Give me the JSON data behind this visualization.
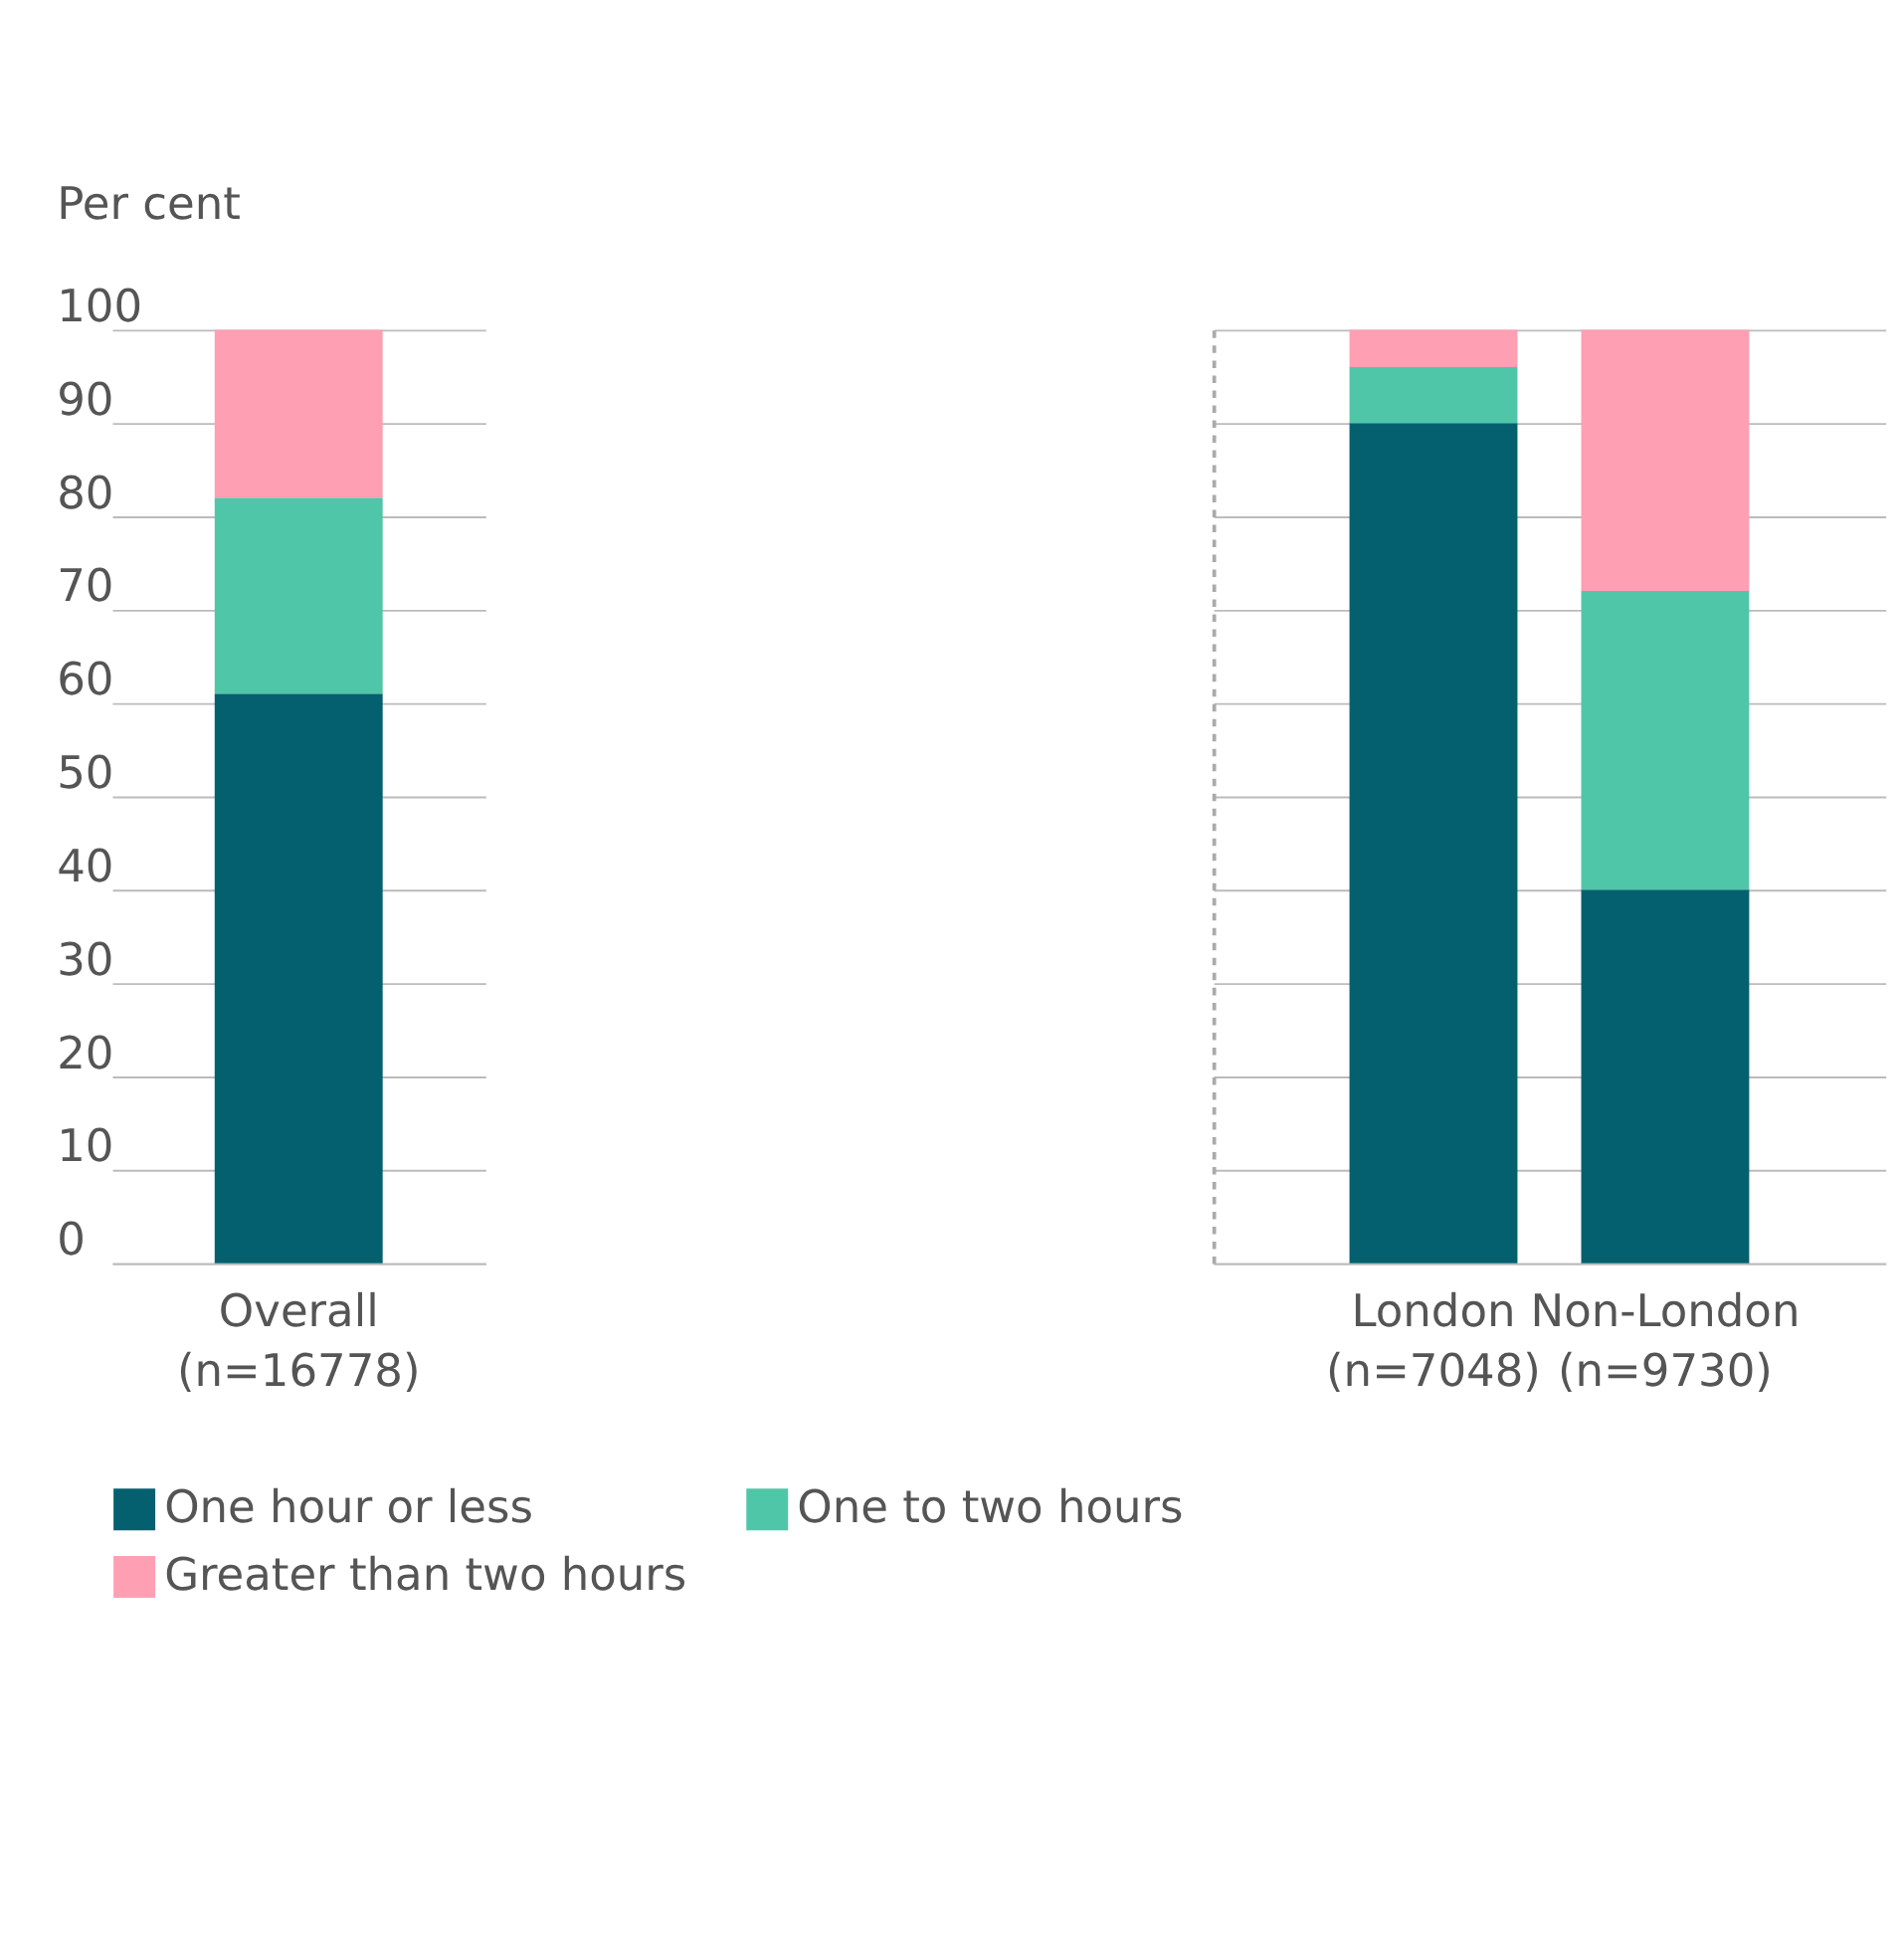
{
  "chart_data": [
    {
      "type": "bar",
      "stacked": true,
      "ylabel": "Per cent",
      "categories": [
        "Overall\n(n=16778)"
      ],
      "ylim": [
        0,
        100
      ],
      "yticks": [
        0,
        10,
        20,
        30,
        40,
        50,
        60,
        70,
        80,
        90,
        100
      ],
      "grid": "y",
      "legend": "bottom",
      "series": [
        {
          "name": "One hour or less",
          "color": "#04606f",
          "values": [
            61
          ]
        },
        {
          "name": "One to two hours",
          "color": "#50c6a8",
          "values": [
            21
          ]
        },
        {
          "name": "Greater than two hours",
          "color": "#ff9fb3",
          "values": [
            18
          ]
        }
      ]
    },
    {
      "type": "bar",
      "stacked": true,
      "categories": [
        "London\n(n=7048)",
        "Non-London\n(n=9730)"
      ],
      "ylim": [
        0,
        100
      ],
      "yticks": [
        0,
        10,
        20,
        30,
        40,
        50,
        60,
        70,
        80,
        90,
        100
      ],
      "grid": "y",
      "tick_labels": "x",
      "series": [
        {
          "color": "#04606f",
          "values": [
            90,
            40
          ]
        },
        {
          "color": "#50c6a8",
          "values": [
            6,
            32
          ]
        },
        {
          "color": "#ff9fb3",
          "values": [
            4,
            28
          ]
        }
      ]
    }
  ]
}
